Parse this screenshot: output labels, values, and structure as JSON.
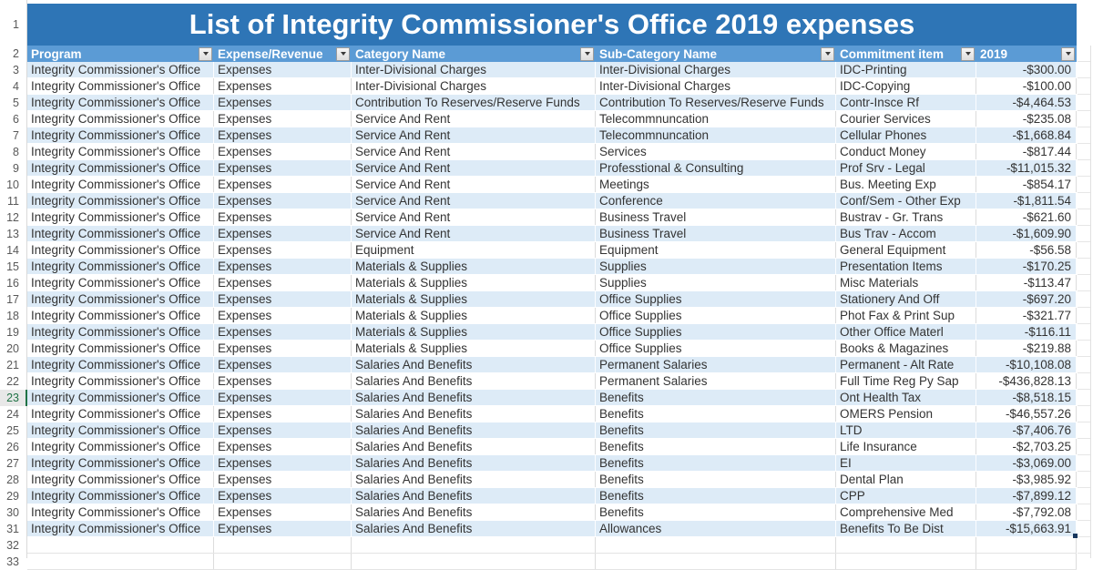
{
  "sheet": {
    "title": "List of Integrity Commissioner's Office 2019 expenses",
    "columns": [
      {
        "id": "program",
        "label": "Program"
      },
      {
        "id": "expense-revenue",
        "label": "Expense/Revenue"
      },
      {
        "id": "category-name",
        "label": "Category Name"
      },
      {
        "id": "sub-category-name",
        "label": "Sub-Category Name"
      },
      {
        "id": "commitment-item",
        "label": "Commitment item"
      },
      {
        "id": "2019",
        "label": "2019"
      }
    ],
    "first_data_row_number": 3,
    "selected_row_number": 23,
    "trailing_empty_row_numbers": [
      32,
      33
    ],
    "rows": [
      [
        "Integrity Commissioner's Office",
        "Expenses",
        "Inter-Divisional Charges",
        "Inter-Divisional Charges",
        "IDC-Printing",
        "-$300.00"
      ],
      [
        "Integrity Commissioner's Office",
        "Expenses",
        "Inter-Divisional Charges",
        "Inter-Divisional Charges",
        "IDC-Copying",
        "-$100.00"
      ],
      [
        "Integrity Commissioner's Office",
        "Expenses",
        "Contribution To Reserves/Reserve Funds",
        "Contribution To Reserves/Reserve Funds",
        "Contr-Insce Rf",
        "-$4,464.53"
      ],
      [
        "Integrity Commissioner's Office",
        "Expenses",
        "Service And Rent",
        "Telecommnuncation",
        "Courier Services",
        "-$235.08"
      ],
      [
        "Integrity Commissioner's Office",
        "Expenses",
        "Service And Rent",
        "Telecommnuncation",
        "Cellular Phones",
        "-$1,668.84"
      ],
      [
        "Integrity Commissioner's Office",
        "Expenses",
        "Service And Rent",
        "Services",
        "Conduct Money",
        "-$817.44"
      ],
      [
        "Integrity Commissioner's Office",
        "Expenses",
        "Service And Rent",
        "Professtional & Consulting",
        "Prof Srv - Legal",
        "-$11,015.32"
      ],
      [
        "Integrity Commissioner's Office",
        "Expenses",
        "Service And Rent",
        "Meetings",
        "Bus. Meeting Exp",
        "-$854.17"
      ],
      [
        "Integrity Commissioner's Office",
        "Expenses",
        "Service And Rent",
        "Conference",
        "Conf/Sem - Other Exp",
        "-$1,811.54"
      ],
      [
        "Integrity Commissioner's Office",
        "Expenses",
        "Service And Rent",
        "Business Travel",
        "Bustrav - Gr. Trans",
        "-$621.60"
      ],
      [
        "Integrity Commissioner's Office",
        "Expenses",
        "Service And Rent",
        "Business Travel",
        "Bus Trav - Accom",
        "-$1,609.90"
      ],
      [
        "Integrity Commissioner's Office",
        "Expenses",
        "Equipment",
        "Equipment",
        "General Equipment",
        "-$56.58"
      ],
      [
        "Integrity Commissioner's Office",
        "Expenses",
        "Materials & Supplies",
        "Supplies",
        "Presentation Items",
        "-$170.25"
      ],
      [
        "Integrity Commissioner's Office",
        "Expenses",
        "Materials & Supplies",
        "Supplies",
        "Misc Materials",
        "-$113.47"
      ],
      [
        "Integrity Commissioner's Office",
        "Expenses",
        "Materials & Supplies",
        "Office Supplies",
        "Stationery And Off",
        "-$697.20"
      ],
      [
        "Integrity Commissioner's Office",
        "Expenses",
        "Materials & Supplies",
        "Office Supplies",
        "Phot Fax & Print Sup",
        "-$321.77"
      ],
      [
        "Integrity Commissioner's Office",
        "Expenses",
        "Materials & Supplies",
        "Office Supplies",
        "Other Office Materl",
        "-$116.11"
      ],
      [
        "Integrity Commissioner's Office",
        "Expenses",
        "Materials & Supplies",
        "Office Supplies",
        "Books & Magazines",
        "-$219.88"
      ],
      [
        "Integrity Commissioner's Office",
        "Expenses",
        "Salaries And Benefits",
        "Permanent Salaries",
        "Permanent - Alt Rate",
        "-$10,108.08"
      ],
      [
        "Integrity Commissioner's Office",
        "Expenses",
        "Salaries And Benefits",
        "Permanent Salaries",
        "Full Time Reg Py Sap",
        "-$436,828.13"
      ],
      [
        "Integrity Commissioner's Office",
        "Expenses",
        "Salaries And Benefits",
        "Benefits",
        "Ont Health Tax",
        "-$8,518.15"
      ],
      [
        "Integrity Commissioner's Office",
        "Expenses",
        "Salaries And Benefits",
        "Benefits",
        "OMERS Pension",
        "-$46,557.26"
      ],
      [
        "Integrity Commissioner's Office",
        "Expenses",
        "Salaries And Benefits",
        "Benefits",
        "LTD",
        "-$7,406.76"
      ],
      [
        "Integrity Commissioner's Office",
        "Expenses",
        "Salaries And Benefits",
        "Benefits",
        "Life Insurance",
        "-$2,703.25"
      ],
      [
        "Integrity Commissioner's Office",
        "Expenses",
        "Salaries And Benefits",
        "Benefits",
        "EI",
        "-$3,069.00"
      ],
      [
        "Integrity Commissioner's Office",
        "Expenses",
        "Salaries And Benefits",
        "Benefits",
        "Dental Plan",
        "-$3,985.92"
      ],
      [
        "Integrity Commissioner's Office",
        "Expenses",
        "Salaries And Benefits",
        "Benefits",
        "CPP",
        "-$7,899.12"
      ],
      [
        "Integrity Commissioner's Office",
        "Expenses",
        "Salaries And Benefits",
        "Benefits",
        "Comprehensive Med",
        "-$7,792.08"
      ],
      [
        "Integrity Commissioner's Office",
        "Expenses",
        "Salaries And Benefits",
        "Allowances",
        "Benefits To Be Dist",
        "-$15,663.91"
      ]
    ],
    "colors": {
      "title_bg": "#2E75B6",
      "header_bg": "#5B9BD5",
      "stripe_bg": "#DDEBF7",
      "selection_green": "#217346",
      "fill_handle": "#17375E"
    }
  }
}
